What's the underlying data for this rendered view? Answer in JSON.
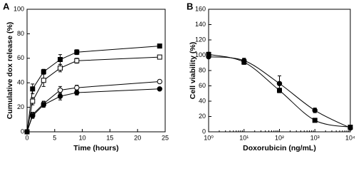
{
  "chart_data": [
    {
      "type": "line",
      "panel": "A",
      "xlabel": "Time (hours)",
      "ylabel": "Cumulative dox release (%)",
      "xlim": [
        0,
        25
      ],
      "xticks": [
        0,
        5,
        10,
        15,
        20,
        25
      ],
      "ylim": [
        0,
        100
      ],
      "yticks": [
        0,
        20,
        40,
        60,
        80,
        100
      ],
      "x": [
        0,
        1,
        3,
        6,
        9,
        24
      ],
      "series": [
        {
          "marker": "square",
          "color": "#000000",
          "values": [
            0,
            35,
            49,
            59,
            65,
            70
          ],
          "errors": [
            0,
            4,
            2,
            4,
            2,
            1
          ]
        },
        {
          "marker": "square-open",
          "color": "#000000",
          "values": [
            0,
            25,
            42,
            52,
            58,
            61
          ],
          "errors": [
            0,
            3,
            5,
            3,
            2,
            1
          ]
        },
        {
          "marker": "circle-open",
          "color": "#000000",
          "values": [
            0,
            14,
            23,
            34,
            36,
            41
          ],
          "errors": [
            0,
            2,
            2,
            3,
            2,
            1
          ]
        },
        {
          "marker": "circle",
          "color": "#000000",
          "values": [
            0,
            13,
            22,
            29,
            32,
            35
          ],
          "errors": [
            0,
            2,
            2,
            3,
            2,
            1
          ]
        }
      ]
    },
    {
      "type": "curve",
      "panel": "B",
      "xlabel": "Doxorubicin (ng/mL)",
      "ylabel": "Cell viability (%)",
      "xscale": "log",
      "xlim": [
        1,
        10000
      ],
      "xticks": [
        {
          "value": 1,
          "label": "10⁰"
        },
        {
          "value": 10,
          "label": "10¹"
        },
        {
          "value": 100,
          "label": "10²"
        },
        {
          "value": 1000,
          "label": "10³"
        },
        {
          "value": 10000,
          "label": "10⁴"
        }
      ],
      "ylim": [
        0,
        160
      ],
      "yticks": [
        0,
        20,
        40,
        60,
        80,
        100,
        120,
        140,
        160
      ],
      "x": [
        1,
        10,
        100,
        1000,
        10000
      ],
      "series": [
        {
          "marker": "square",
          "color": "#000000",
          "values": [
            101,
            91,
            54,
            15,
            6
          ],
          "errors": [
            3,
            3,
            3,
            2,
            2
          ]
        },
        {
          "marker": "circle",
          "color": "#000000",
          "values": [
            98,
            93,
            63,
            28,
            5
          ],
          "errors": [
            2,
            3,
            10,
            3,
            1
          ]
        }
      ]
    }
  ]
}
